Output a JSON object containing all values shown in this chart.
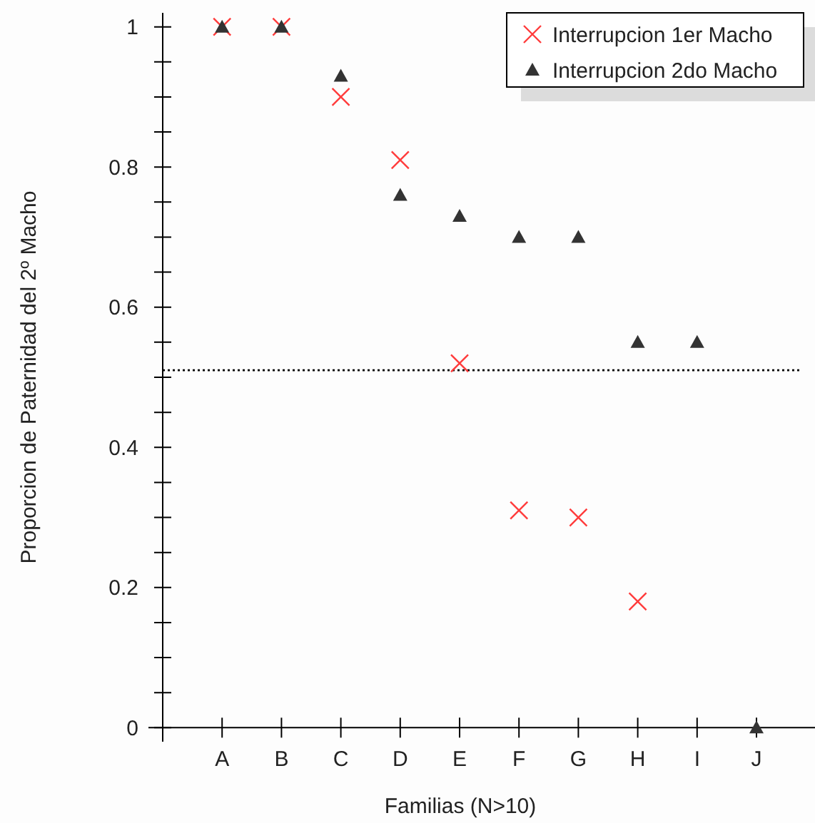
{
  "chart_data": {
    "type": "scatter",
    "xlabel": "Familias (N>10)",
    "ylabel": "Proporcion de Paternidad del 2º Macho",
    "categories": [
      null,
      "A",
      "B",
      "C",
      "D",
      "E",
      "F",
      "G",
      "H",
      "I",
      "J"
    ],
    "series": [
      {
        "name": "Interrupcion 1er Macho",
        "color": "#ff3b3b",
        "marker": "cross",
        "values": [
          null,
          1,
          1,
          0.9,
          0.81,
          0.52,
          0.31,
          0.3,
          0.18,
          null,
          null
        ]
      },
      {
        "name": "Interrupcion 2do Macho",
        "color": "#333333",
        "marker": "triangle",
        "values": [
          null,
          1,
          1,
          0.93,
          0.76,
          0.73,
          0.7,
          0.7,
          0.55,
          0.55,
          0
        ]
      }
    ],
    "ylim": [
      -0.02,
      1.02
    ],
    "yticks": [
      0,
      {
        "value": 0.05,
        "label": null
      },
      {
        "value": 0.1,
        "label": null
      },
      {
        "value": 0.15,
        "label": null
      },
      0.2,
      {
        "value": 0.25,
        "label": null
      },
      {
        "value": 0.3,
        "label": null
      },
      {
        "value": 0.35,
        "label": null
      },
      0.4,
      {
        "value": 0.45,
        "label": null
      },
      {
        "value": 0.5,
        "label": null
      },
      {
        "value": 0.55,
        "label": null
      },
      0.6,
      {
        "value": 0.65,
        "label": null
      },
      {
        "value": 0.7,
        "label": null
      },
      {
        "value": 0.75,
        "label": null
      },
      0.8,
      {
        "value": 0.85,
        "label": null
      },
      {
        "value": 0.9,
        "label": null
      },
      {
        "value": 0.95,
        "label": null
      },
      1
    ],
    "ref_lines": [
      {
        "axis": "y",
        "value": 0.51,
        "line_style": "dotted",
        "color": "#000000"
      }
    ],
    "legend": "top right",
    "grid": false
  }
}
